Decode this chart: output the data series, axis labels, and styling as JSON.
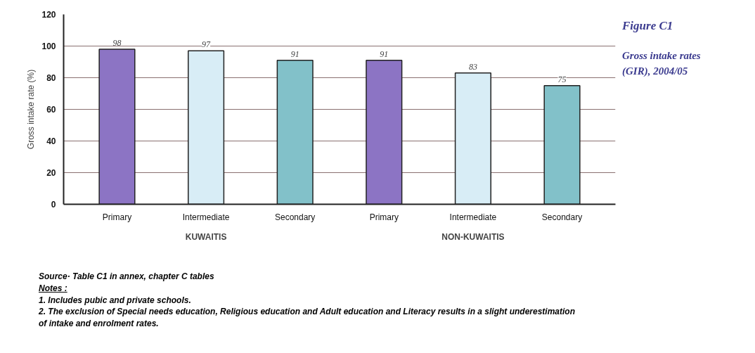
{
  "chart_data": {
    "type": "bar",
    "title": "Figure C1",
    "subtitle": "Gross intake rates (GIR), 2004/05",
    "ylabel": "Gross intake rate (%)",
    "categories": [
      "Primary",
      "Intermediate",
      "Secondary",
      "Primary",
      "Intermediate",
      "Secondary"
    ],
    "values": [
      98,
      97,
      91,
      91,
      83,
      75
    ],
    "colors": [
      "#8c74c4",
      "#d8edf6",
      "#82c1c9",
      "#8c74c4",
      "#d8edf6",
      "#82c1c9"
    ],
    "data_labels": true,
    "ylim": [
      0,
      120
    ],
    "yticks": [
      0,
      20,
      40,
      60,
      80,
      100,
      120
    ],
    "grid": "y",
    "annotations": [
      "KUWAITIS",
      "NON-KUWAITIS",
      "Source· Table C1 in annex, chapter C tables",
      "Notes :",
      "1. Includes pubic and private schools.",
      "2. The exclusion of Special needs education, Religious education and Adult education and Literacy results in a slight underestimation of intake and enrolment rates."
    ]
  }
}
